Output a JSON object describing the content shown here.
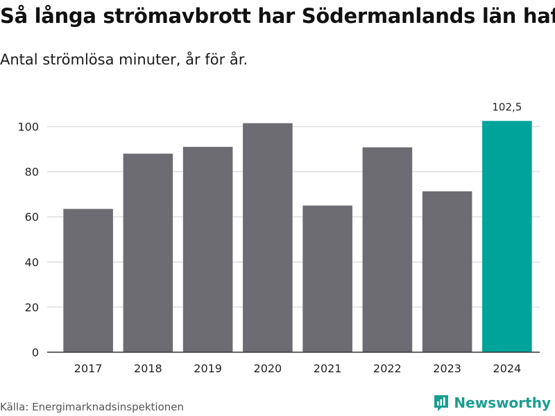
{
  "title": "Så långa strömavbrott har Södermanlands län haft",
  "subtitle": "Antal strömlösa minuter, år för år.",
  "source": "Källa: Energimarknadsinspektionen",
  "brand": {
    "name": "Newsworthy",
    "icon": "newsworthy-logo-icon",
    "color": "#1b9e8f"
  },
  "colors": {
    "bar": "#6d6c72",
    "highlight": "#00a399",
    "grid": "#dddddd",
    "axis": "#333333"
  },
  "chart_data": {
    "type": "bar",
    "title": "Så långa strömavbrott har Södermanlands län haft",
    "subtitle": "Antal strömlösa minuter, år för år.",
    "xlabel": "",
    "ylabel": "",
    "categories": [
      "2017",
      "2018",
      "2019",
      "2020",
      "2021",
      "2022",
      "2023",
      "2024"
    ],
    "values": [
      63.5,
      88,
      91,
      101.5,
      65,
      90.8,
      71.3,
      102.5
    ],
    "highlight_index": 7,
    "data_labels": [
      {
        "index": 7,
        "text": "102,5"
      }
    ],
    "ylim": [
      0,
      110
    ],
    "yticks": [
      0,
      20,
      40,
      60,
      80,
      100
    ],
    "grid": true,
    "legend": "none"
  }
}
